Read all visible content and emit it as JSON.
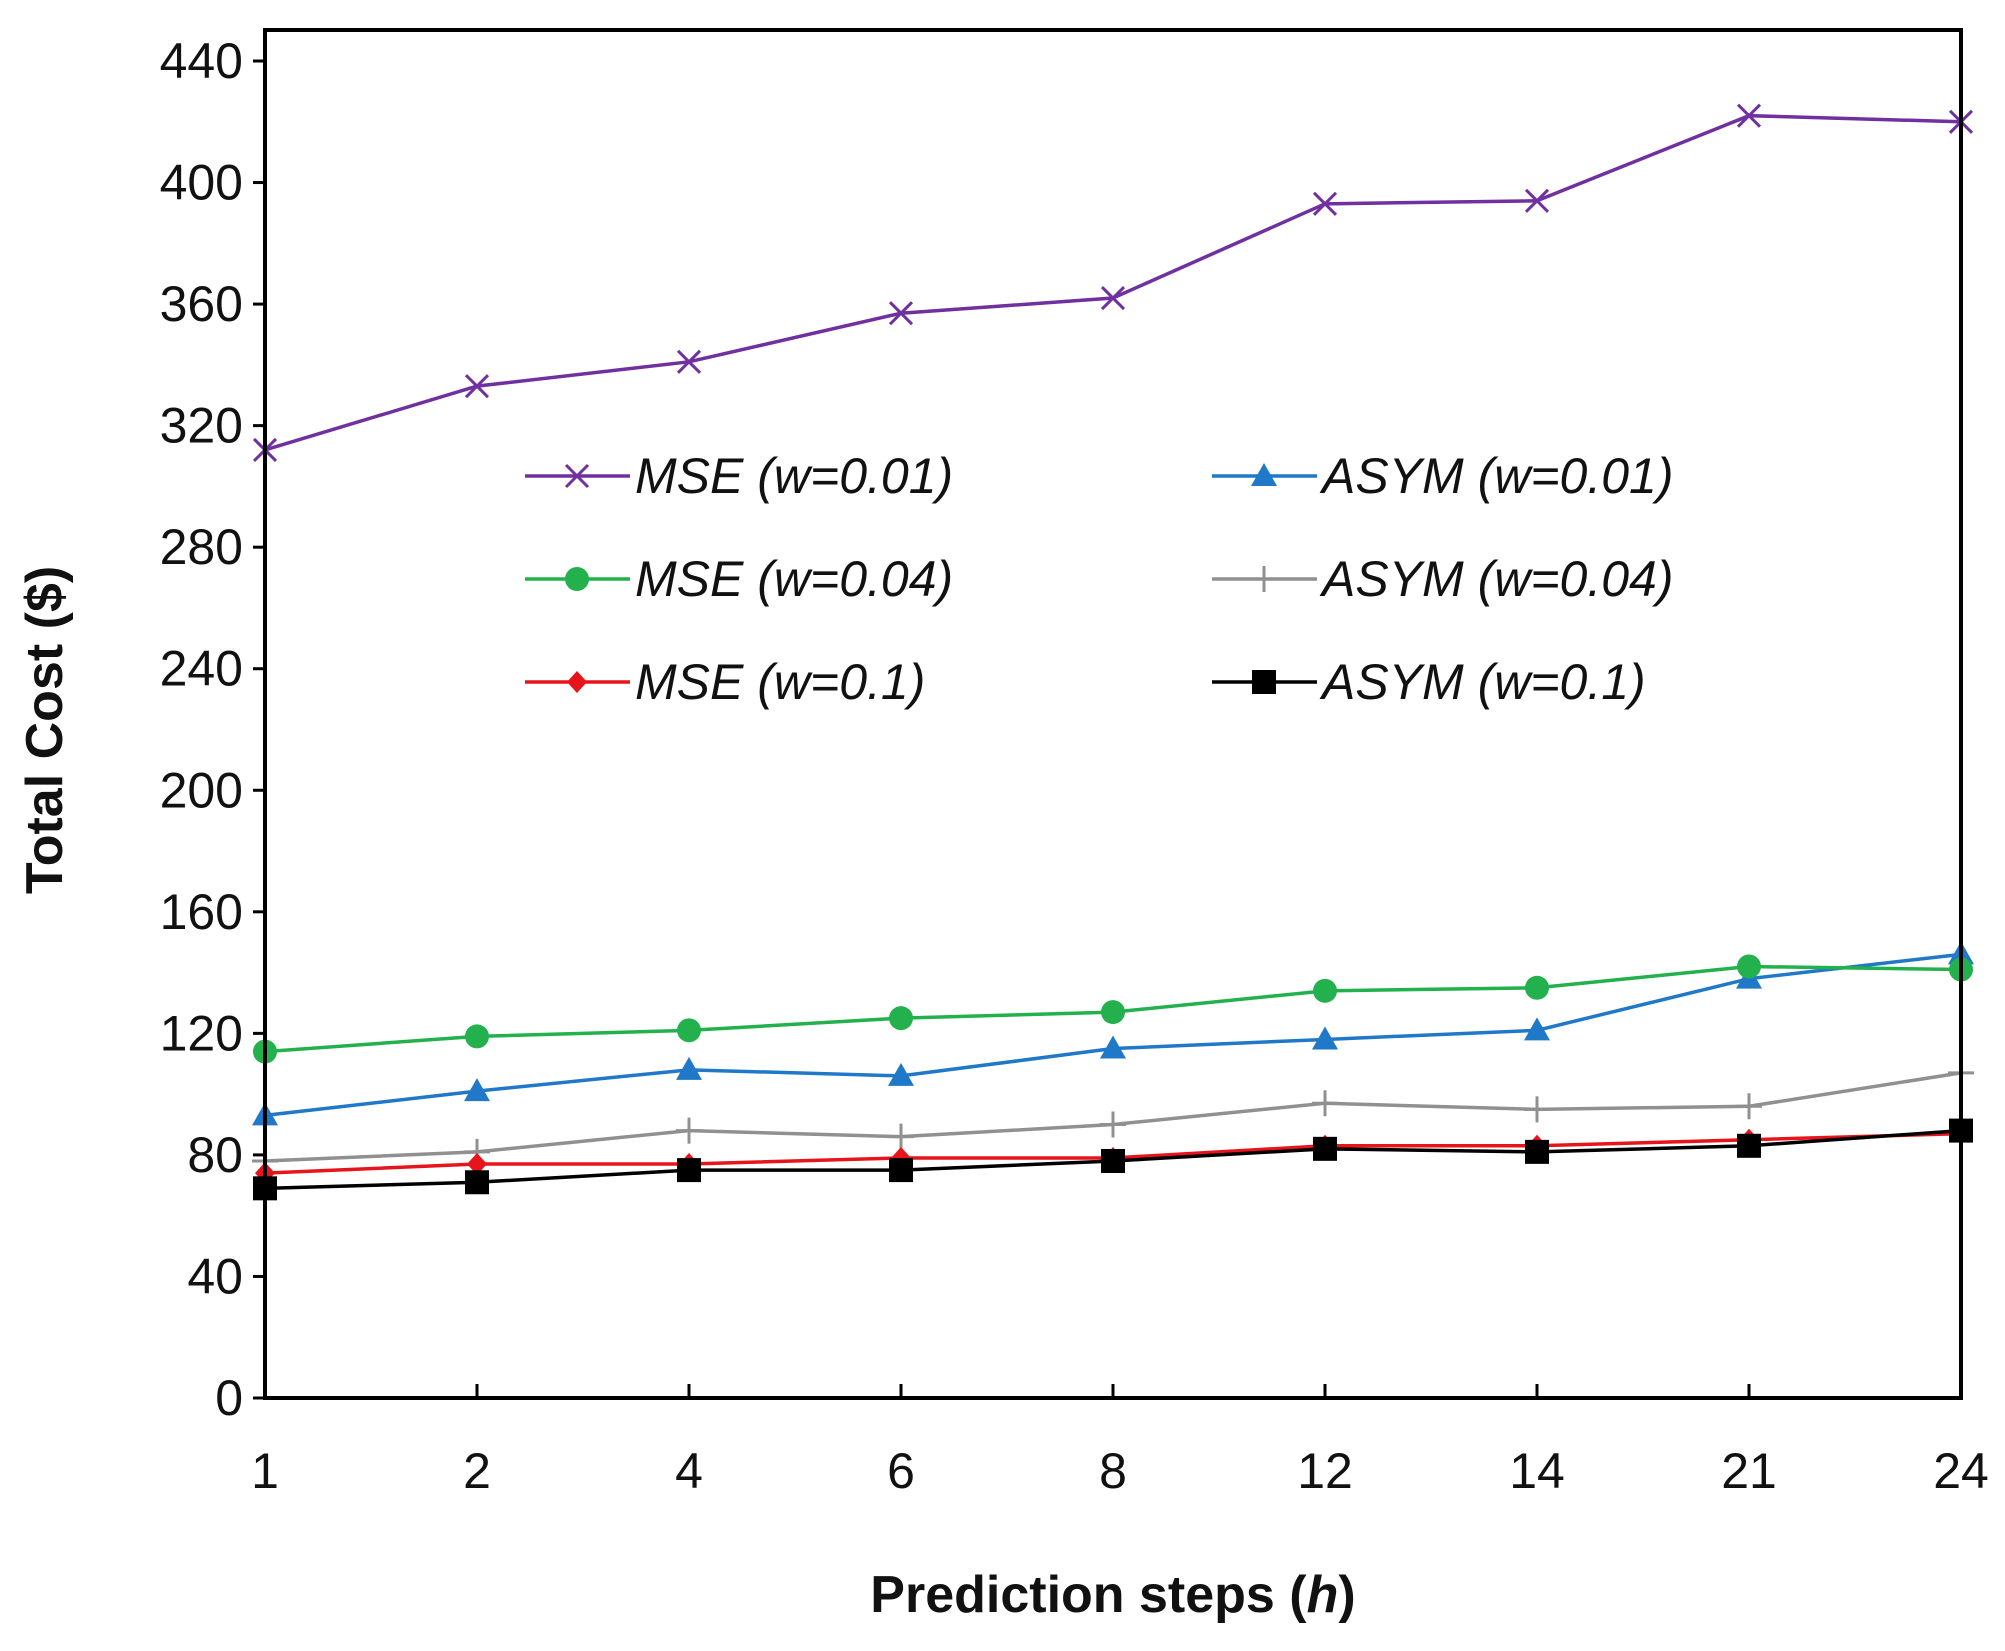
{
  "chart_data": {
    "type": "line",
    "title": "",
    "xlabel": "Prediction steps (h)",
    "xlabel_main": "Prediction steps (",
    "xlabel_var": "h",
    "xlabel_close": ")",
    "ylabel": "Total Cost ($)",
    "ylim": [
      0,
      440
    ],
    "yticks": [
      "0",
      "40",
      "80",
      "120",
      "160",
      "200",
      "240",
      "280",
      "320",
      "360",
      "400",
      "440"
    ],
    "categories": [
      "1",
      "2",
      "4",
      "6",
      "8",
      "12",
      "14",
      "21",
      "24"
    ],
    "legend_position": "upper-middle, two columns",
    "series": [
      {
        "name": "MSE (w=0.01)",
        "color": "#7030A0",
        "marker": "x",
        "values": [
          312,
          333,
          341,
          357,
          362,
          393,
          394,
          422,
          420
        ]
      },
      {
        "name": "ASYM (w=0.01)",
        "color": "#1F78C8",
        "marker": "triangle",
        "values": [
          93,
          101,
          108,
          106,
          115,
          118,
          121,
          138,
          146
        ]
      },
      {
        "name": "MSE (w=0.04)",
        "color": "#22B14C",
        "marker": "circle",
        "values": [
          114,
          119,
          121,
          125,
          127,
          134,
          135,
          142,
          141
        ]
      },
      {
        "name": "ASYM (w=0.04)",
        "color": "#909090",
        "marker": "plus",
        "values": [
          78,
          81,
          88,
          86,
          90,
          97,
          95,
          96,
          107
        ]
      },
      {
        "name": "MSE (w=0.1)",
        "color": "#E8141C",
        "marker": "diamond",
        "values": [
          74,
          77,
          77,
          79,
          79,
          83,
          83,
          85,
          87
        ]
      },
      {
        "name": "ASYM (w=0.1)",
        "color": "#000000",
        "marker": "square",
        "values": [
          69,
          71,
          75,
          75,
          78,
          82,
          81,
          83,
          88
        ]
      }
    ]
  }
}
